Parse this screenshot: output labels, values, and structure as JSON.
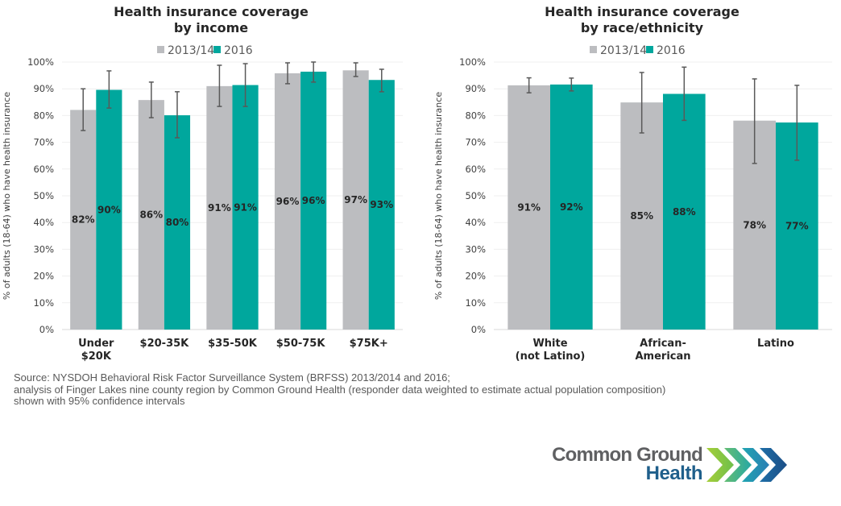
{
  "chart_data": [
    {
      "type": "bar",
      "title": [
        "Health insurance coverage",
        "by income"
      ],
      "xlabel": "",
      "ylabel": "% of adults (18-64) who have health insurance",
      "ylim": [
        0,
        100
      ],
      "yticks": [
        "0%",
        "10%",
        "20%",
        "30%",
        "40%",
        "50%",
        "60%",
        "70%",
        "80%",
        "90%",
        "100%"
      ],
      "grid": true,
      "legend": "top-center",
      "categories": [
        [
          "Under",
          "$20K"
        ],
        [
          "$20-35K"
        ],
        [
          "$35-50K"
        ],
        [
          "$50-75K"
        ],
        [
          "$75K+"
        ]
      ],
      "series": [
        {
          "name": "2013/14",
          "color": "#bcbdc0",
          "values": [
            82.1,
            85.8,
            91.0,
            95.8,
            96.9
          ],
          "labels": [
            "82%",
            "86%",
            "91%",
            "96%",
            "97%"
          ],
          "ci_low": [
            74.4,
            79.2,
            83.4,
            91.9,
            94.6
          ],
          "ci_high": [
            90.0,
            92.5,
            98.8,
            99.7,
            99.7
          ]
        },
        {
          "name": "2016",
          "color": "#00a79d",
          "values": [
            89.6,
            80.1,
            91.4,
            96.4,
            93.3
          ],
          "labels": [
            "90%",
            "80%",
            "91%",
            "96%",
            "93%"
          ],
          "ci_low": [
            82.8,
            71.7,
            83.4,
            92.5,
            88.9
          ],
          "ci_high": [
            96.7,
            88.9,
            99.4,
            100.0,
            97.3
          ]
        }
      ]
    },
    {
      "type": "bar",
      "title": [
        "Health insurance coverage",
        "by race/ethnicity"
      ],
      "xlabel": "",
      "ylabel": "% of adults (18-64) who have health insurance",
      "ylim": [
        0,
        100
      ],
      "yticks": [
        "0%",
        "10%",
        "20%",
        "30%",
        "40%",
        "50%",
        "60%",
        "70%",
        "80%",
        "90%",
        "100%"
      ],
      "grid": true,
      "legend": "top-center",
      "categories": [
        [
          "White",
          "(not Latino)"
        ],
        [
          "African-",
          "American"
        ],
        [
          "Latino"
        ]
      ],
      "series": [
        {
          "name": "2013/14",
          "color": "#bcbdc0",
          "values": [
            91.3,
            84.9,
            78.1
          ],
          "labels": [
            "91%",
            "85%",
            "78%"
          ],
          "ci_low": [
            88.5,
            73.5,
            62.1
          ],
          "ci_high": [
            94.1,
            96.1,
            93.7
          ]
        },
        {
          "name": "2016",
          "color": "#00a79d",
          "values": [
            91.6,
            88.1,
            77.4
          ],
          "labels": [
            "92%",
            "88%",
            "77%"
          ],
          "ci_low": [
            89.2,
            78.2,
            63.3
          ],
          "ci_high": [
            94.0,
            98.1,
            91.3
          ]
        }
      ]
    }
  ],
  "source": {
    "lines": [
      "Source: NYSDOH Behavioral Risk Factor Surveillance System (BRFSS)  2013/2014 and 2016;",
      "analysis of Finger Lakes nine county region by Common Ground Health (responder data weighted to estimate actual population composition)",
      "shown with 95% confidence intervals"
    ]
  },
  "logo": {
    "line1": "Common Ground",
    "line2": "Health",
    "icon": "chevron-arrows-icon"
  }
}
